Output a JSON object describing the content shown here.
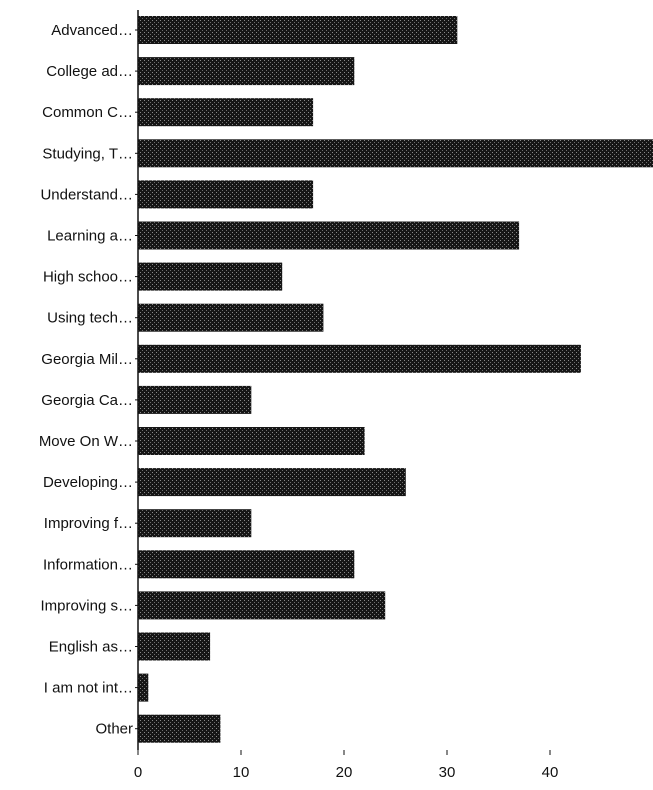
{
  "chart_data": {
    "type": "bar",
    "orientation": "horizontal",
    "categories": [
      "Advanced…",
      "College ad…",
      "Common C…",
      "Studying, T…",
      "Understand…",
      "Learning a…",
      "High schoo…",
      "Using tech…",
      "Georgia Mil…",
      "Georgia Ca…",
      "Move On W…",
      "Developing…",
      "Improving f…",
      "Information…",
      "Improving s…",
      "English as…",
      "I am not int…",
      "Other"
    ],
    "values": [
      31,
      21,
      17,
      50,
      17,
      37,
      14,
      18,
      43,
      11,
      22,
      26,
      11,
      21,
      24,
      7,
      1,
      8
    ],
    "xlim": [
      0,
      50
    ],
    "x_ticks": [
      0,
      10,
      20,
      30,
      40
    ],
    "title": "",
    "xlabel": "",
    "ylabel": "",
    "grid": false,
    "legend": "none",
    "bar_color": "#1a1a1a"
  }
}
